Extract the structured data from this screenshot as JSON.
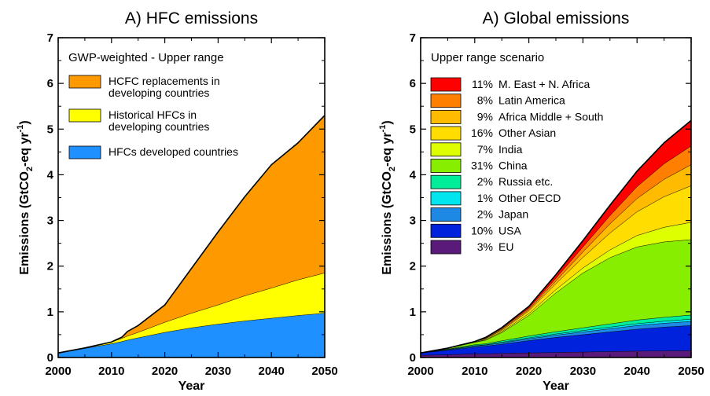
{
  "chart_data": [
    {
      "type": "area",
      "title": "A) HFC emissions",
      "subtitle": "GWP-weighted - Upper range",
      "xlabel": "Year",
      "ylabel": "Emissions (GtCO",
      "ylabel_sub": "2",
      "ylabel_mid": "-eq yr",
      "ylabel_sup": "-1",
      "ylabel_end": ")",
      "xlim": [
        2000,
        2050
      ],
      "ylim": [
        0,
        7
      ],
      "xticks": [
        "2000",
        "2010",
        "2020",
        "2030",
        "2040",
        "2050"
      ],
      "yticks": [
        "0",
        "1",
        "2",
        "3",
        "4",
        "5",
        "6",
        "7"
      ],
      "legend_position": "top-left",
      "x": [
        2000,
        2005,
        2010,
        2012,
        2013,
        2015,
        2020,
        2025,
        2030,
        2035,
        2040,
        2045,
        2050
      ],
      "series": [
        {
          "name": "HFCs developed countries",
          "color": "#1e90ff",
          "values": [
            0.1,
            0.2,
            0.3,
            0.35,
            0.38,
            0.43,
            0.55,
            0.65,
            0.73,
            0.8,
            0.86,
            0.92,
            0.97
          ]
        },
        {
          "name": "Historical HFCs in developing countries",
          "color": "#ffff00",
          "values": [
            0.0,
            0.01,
            0.04,
            0.07,
            0.09,
            0.12,
            0.22,
            0.32,
            0.42,
            0.55,
            0.66,
            0.78,
            0.88
          ]
        },
        {
          "name": "HCFC replacements in developing countries",
          "color": "#ff9900",
          "values": [
            0.0,
            0.0,
            0.0,
            0.03,
            0.1,
            0.15,
            0.38,
            0.98,
            1.6,
            2.17,
            2.7,
            3.0,
            3.45
          ]
        }
      ]
    },
    {
      "type": "area",
      "title": "A) Global emissions",
      "subtitle": "Upper range scenario",
      "xlabel": "Year",
      "ylabel": "Emissions (GtCO",
      "ylabel_sub": "2",
      "ylabel_mid": "-eq yr",
      "ylabel_sup": "-1",
      "ylabel_end": ")",
      "xlim": [
        2000,
        2050
      ],
      "ylim": [
        0,
        7
      ],
      "xticks": [
        "2000",
        "2010",
        "2020",
        "2030",
        "2040",
        "2050"
      ],
      "yticks": [
        "0",
        "1",
        "2",
        "3",
        "4",
        "5",
        "6",
        "7"
      ],
      "legend_position": "top-left",
      "x": [
        2000,
        2005,
        2010,
        2012,
        2015,
        2020,
        2025,
        2030,
        2035,
        2040,
        2045,
        2050
      ],
      "series": [
        {
          "name": "EU",
          "percent": "3%",
          "color": "#5a1a7a",
          "values": [
            0.05,
            0.06,
            0.08,
            0.08,
            0.09,
            0.1,
            0.11,
            0.12,
            0.13,
            0.14,
            0.145,
            0.15
          ]
        },
        {
          "name": "USA",
          "percent": "10%",
          "color": "#0022dd",
          "values": [
            0.05,
            0.1,
            0.15,
            0.17,
            0.2,
            0.27,
            0.33,
            0.38,
            0.43,
            0.48,
            0.52,
            0.55
          ]
        },
        {
          "name": "Japan",
          "percent": "2%",
          "color": "#1e88e5",
          "values": [
            0.0,
            0.01,
            0.02,
            0.02,
            0.03,
            0.04,
            0.05,
            0.06,
            0.07,
            0.08,
            0.085,
            0.09
          ]
        },
        {
          "name": "Other OECD",
          "percent": "1%",
          "color": "#00e5ee",
          "values": [
            0.0,
            0.005,
            0.01,
            0.01,
            0.015,
            0.02,
            0.025,
            0.03,
            0.035,
            0.04,
            0.045,
            0.05
          ]
        },
        {
          "name": "Russia etc.",
          "percent": "2%",
          "color": "#00ee99",
          "values": [
            0.0,
            0.01,
            0.02,
            0.02,
            0.03,
            0.04,
            0.05,
            0.06,
            0.07,
            0.08,
            0.085,
            0.09
          ]
        },
        {
          "name": "China",
          "percent": "31%",
          "color": "#88ee00",
          "values": [
            0.0,
            0.02,
            0.05,
            0.08,
            0.18,
            0.45,
            0.85,
            1.2,
            1.45,
            1.6,
            1.65,
            1.65
          ]
        },
        {
          "name": "India",
          "percent": "7%",
          "color": "#ddff00",
          "values": [
            0.0,
            0.0,
            0.01,
            0.01,
            0.02,
            0.04,
            0.07,
            0.11,
            0.17,
            0.25,
            0.32,
            0.38
          ]
        },
        {
          "name": "Other Asian",
          "percent": "16%",
          "color": "#ffdd00",
          "values": [
            0.0,
            0.0,
            0.01,
            0.02,
            0.03,
            0.06,
            0.13,
            0.23,
            0.37,
            0.52,
            0.67,
            0.8
          ]
        },
        {
          "name": "Africa Middle + South",
          "percent": "9%",
          "color": "#ffbb00",
          "values": [
            0.0,
            0.0,
            0.0,
            0.01,
            0.02,
            0.03,
            0.06,
            0.12,
            0.2,
            0.29,
            0.38,
            0.46
          ]
        },
        {
          "name": "Latin America",
          "percent": "8%",
          "color": "#ff7f00",
          "values": [
            0.0,
            0.0,
            0.0,
            0.01,
            0.02,
            0.03,
            0.06,
            0.11,
            0.18,
            0.26,
            0.34,
            0.41
          ]
        },
        {
          "name": "M. East + N. Africa",
          "percent": "11%",
          "color": "#ff0000",
          "values": [
            0.0,
            0.0,
            0.0,
            0.01,
            0.02,
            0.04,
            0.08,
            0.14,
            0.23,
            0.34,
            0.46,
            0.56
          ]
        }
      ]
    }
  ]
}
